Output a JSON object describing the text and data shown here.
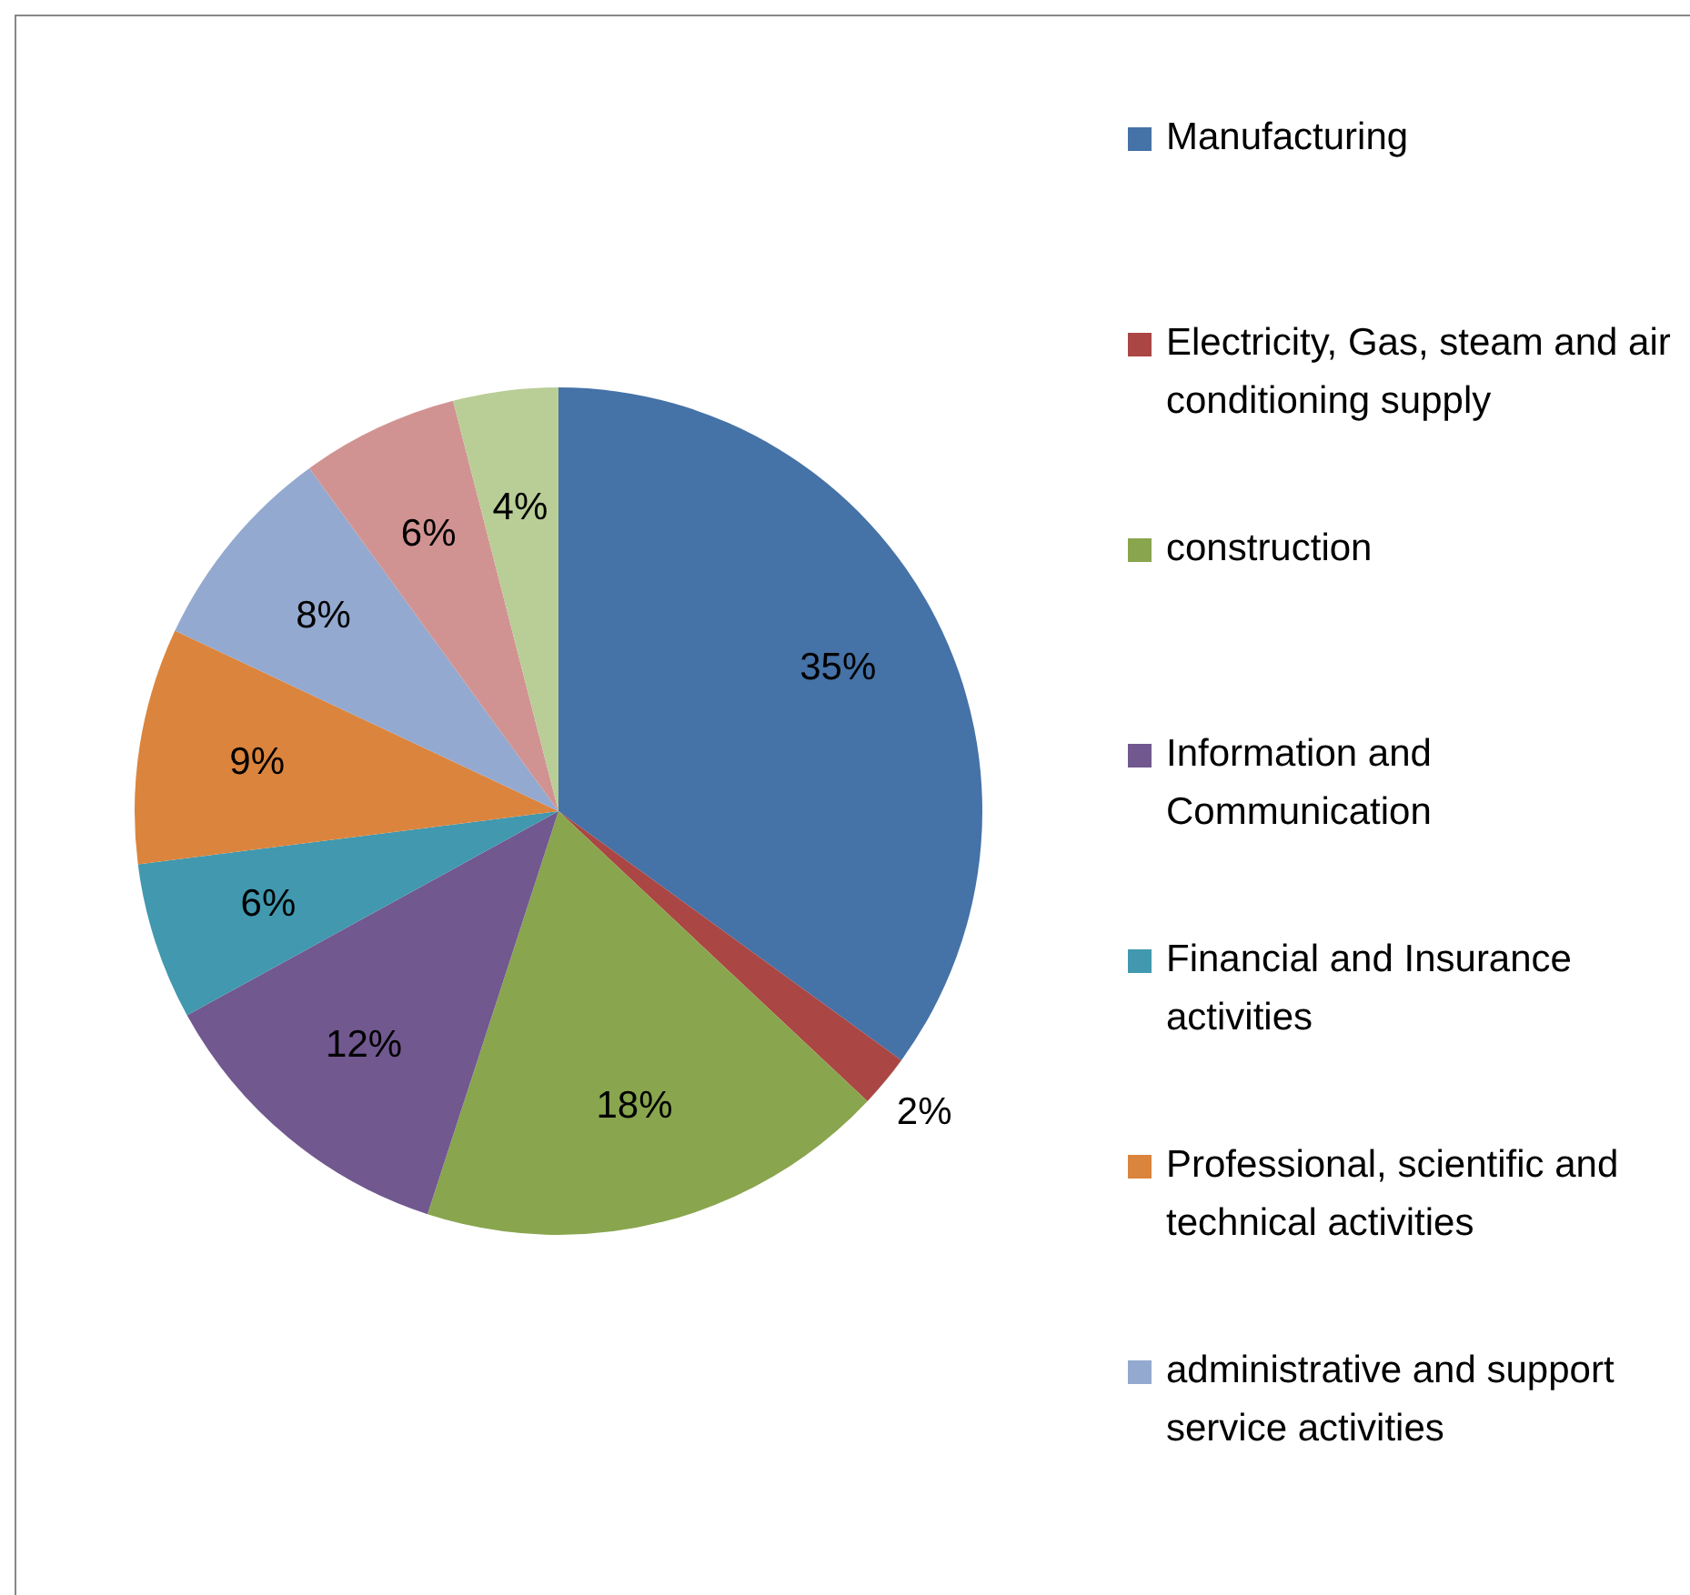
{
  "chart_data": {
    "type": "pie",
    "categories": [
      "Manufacturing",
      "Electricity, Gas, steam and air conditioning supply",
      "construction",
      "Information and Communication",
      "Financial and Insurance activities",
      "Professional, scientific and technical activities",
      "administrative and support service activities",
      null,
      null
    ],
    "values": [
      35,
      2,
      18,
      12,
      6,
      9,
      8,
      6,
      4
    ],
    "value_labels": [
      "35%",
      "2%",
      "18%",
      "12%",
      "6%",
      "9%",
      "8%",
      "6%",
      "4%"
    ],
    "colors": [
      "#4572a7",
      "#aa4643",
      "#89a54e",
      "#71588f",
      "#4198af",
      "#db843d",
      "#93a9cf",
      "#d19392",
      "#b9cd96"
    ],
    "legend": "right"
  }
}
